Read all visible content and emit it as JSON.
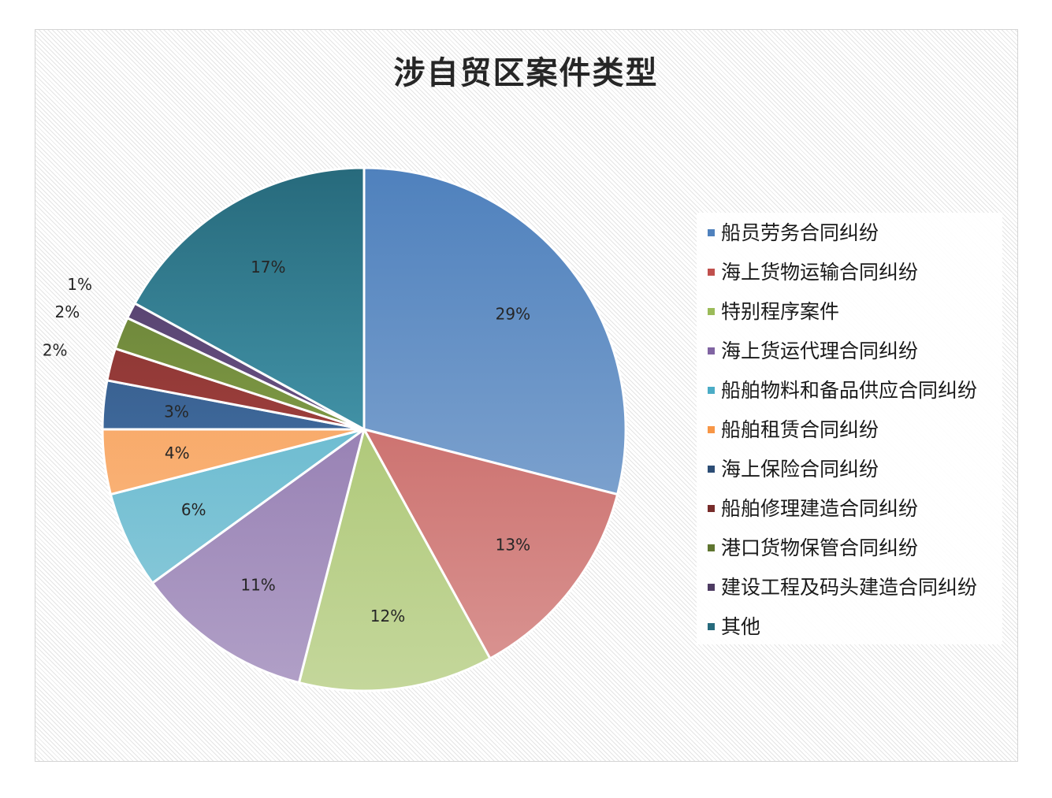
{
  "chart_data": {
    "type": "pie",
    "title": "涉自贸区案件类型",
    "legend_position": "right",
    "slices": [
      {
        "label": "船员劳务合同纠纷",
        "value": 29,
        "value_label": "29%",
        "color": "#4F81BD",
        "color_light": "#95B3D7"
      },
      {
        "label": "海上货物运输合同纠纷",
        "value": 13,
        "value_label": "13%",
        "color": "#C0504D",
        "color_light": "#DA9694"
      },
      {
        "label": "特别程序案件",
        "value": 12,
        "value_label": "12%",
        "color": "#9BBB59",
        "color_light": "#C4D79B"
      },
      {
        "label": "海上货运代理合同纠纷",
        "value": 11,
        "value_label": "11%",
        "color": "#8064A2",
        "color_light": "#B1A0C7"
      },
      {
        "label": "船舶物料和备品供应合同纠纷",
        "value": 6,
        "value_label": "6%",
        "color": "#4BACC6",
        "color_light": "#92CDDC"
      },
      {
        "label": "船舶租赁合同纠纷",
        "value": 4,
        "value_label": "4%",
        "color": "#F79646",
        "color_light": "#FAC090"
      },
      {
        "label": "海上保险合同纠纷",
        "value": 3,
        "value_label": "3%",
        "color": "#2C4D75",
        "color_light": "#4F81BD"
      },
      {
        "label": "船舶修理建造合同纠纷",
        "value": 2,
        "value_label": "2%",
        "color": "#772C2A",
        "color_light": "#C0504D"
      },
      {
        "label": "港口货物保管合同纠纷",
        "value": 2,
        "value_label": "2%",
        "color": "#5F7530",
        "color_light": "#9BBB59"
      },
      {
        "label": "建设工程及码头建造合同纠纷",
        "value": 1,
        "value_label": "1%",
        "color": "#4D3B62",
        "color_light": "#8064A2"
      },
      {
        "label": "其他",
        "value": 17,
        "value_label": "17%",
        "color": "#276A7C",
        "color_light": "#5BB8CF"
      }
    ]
  }
}
